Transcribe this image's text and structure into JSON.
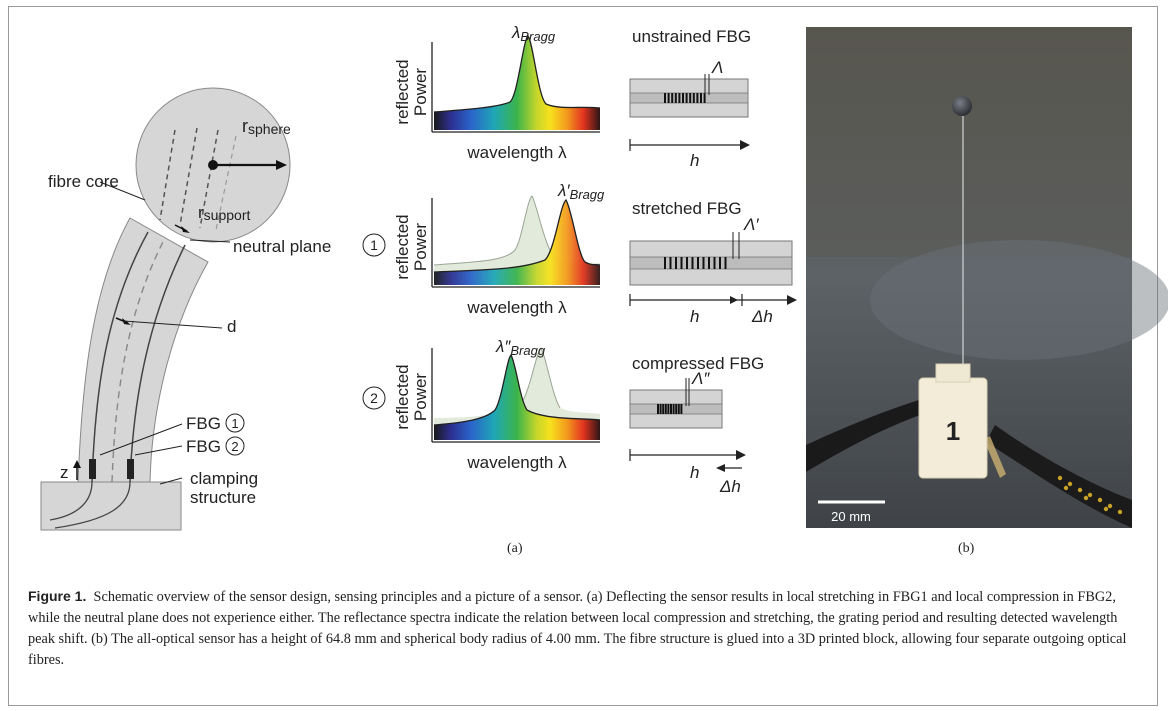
{
  "schematic": {
    "r_sphere": "r",
    "r_sphere_sub": "sphere",
    "fibre_core": "fibre core",
    "r_support": "r",
    "r_support_sub": "support",
    "neutral_plane": "neutral plane",
    "d": "d",
    "fbg1": "FBG",
    "fbg1_num": "1",
    "fbg2": "FBG",
    "fbg2_num": "2",
    "z": "z",
    "clamping_line1": "clamping",
    "clamping_line2": "structure"
  },
  "spectra": {
    "ylabel_line1": "reflected",
    "ylabel_line2": "Power",
    "xlabel": "wavelength λ",
    "row1": {
      "peak_label": "λ",
      "peak_sub": "Bragg",
      "title": "unstrained FBG",
      "period": "Λ",
      "length": "h"
    },
    "row2": {
      "marker": "1",
      "peak_label": "λ′",
      "peak_sub": "Bragg",
      "title": "stretched FBG",
      "period": "Λ′",
      "length": "h",
      "delta": "Δh"
    },
    "row3": {
      "marker": "2",
      "peak_label": "λ″",
      "peak_sub": "Bragg",
      "title": "compressed FBG",
      "period": "Λ″",
      "length": "h",
      "delta": "Δh"
    }
  },
  "photo": {
    "block_label": "1",
    "scale_bar": "20 mm"
  },
  "panel_labels": {
    "a": "(a)",
    "b": "(b)"
  },
  "caption": {
    "figure_label": "Figure 1.",
    "text": "Schematic overview of the sensor design, sensing principles and a picture of a sensor. (a) Deflecting the sensor results in local stretching in FBG1 and local compression in FBG2, while the neutral plane does not experience either. The reflectance spectra indicate the relation between local compression and stretching, the grating period and resulting detected wavelength peak shift. (b) The all-optical sensor has a height of 64.8 mm and spherical body radius of 4.00 mm. The fibre structure is glued into a 3D printed block, allowing four separate outgoing optical fibres."
  }
}
